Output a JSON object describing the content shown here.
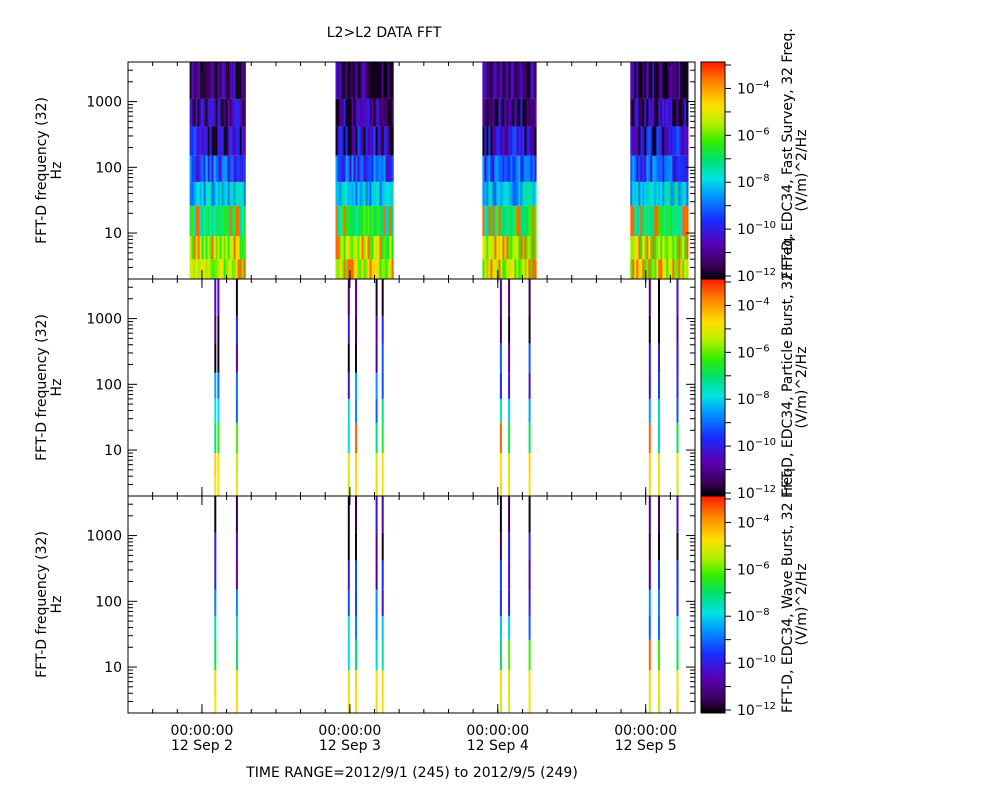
{
  "title": "L2>L2 DATA  FFT",
  "time_range_label": "TIME RANGE=2012/9/1 (245) to 2012/9/5 (249)",
  "chart_data": [
    {
      "type": "heatmap",
      "title": "L2>L2 DATA  FFT",
      "ylabel": "FFT-D frequency (32)",
      "yunit": "Hz",
      "yscale": "log",
      "ylim": [
        2,
        4000
      ],
      "yticks": [
        {
          "value": 10,
          "label": "10"
        },
        {
          "value": 100,
          "label": "100"
        },
        {
          "value": 1000,
          "label": "1000"
        }
      ],
      "xlim": [
        "2012-09-01 12:00",
        "2012-09-05 08:00"
      ],
      "xticks": [
        {
          "time": "2012-09-02 00:00",
          "label1": "00:00:00",
          "label2": "12 Sep  2"
        },
        {
          "time": "2012-09-03 00:00",
          "label1": "00:00:00",
          "label2": "12 Sep  3"
        },
        {
          "time": "2012-09-04 00:00",
          "label1": "00:00:00",
          "label2": "12 Sep  4"
        },
        {
          "time": "2012-09-05 00:00",
          "label1": "00:00:00",
          "label2": "12 Sep  5"
        }
      ],
      "xlabel": "TIME RANGE=2012/9/1 (245) to 2012/9/5 (249)",
      "colorbar": {
        "label1": "FFT-D, EDC34, Fast Survey, 32 Freq.",
        "label2": "(V/m)^2/Hz",
        "scale": "log",
        "range": [
          1e-12,
          0.001
        ],
        "ticks": [
          {
            "exp": -12
          },
          {
            "exp": -10
          },
          {
            "exp": -8
          },
          {
            "exp": -6
          },
          {
            "exp": -4
          }
        ]
      },
      "data_intervals": [
        {
          "start": "2012-09-01 22:00",
          "end": "2012-09-02 06:50"
        },
        {
          "start": "2012-09-02 21:40",
          "end": "2012-09-03 06:50"
        },
        {
          "start": "2012-09-03 21:30",
          "end": "2012-09-04 06:10"
        },
        {
          "start": "2012-09-04 21:30",
          "end": "2012-09-05 06:40"
        }
      ]
    },
    {
      "type": "heatmap",
      "ylabel": "FFT-D frequency (32)",
      "yunit": "Hz",
      "yscale": "log",
      "ylim": [
        2,
        4000
      ],
      "yticks": [
        {
          "value": 10,
          "label": "10"
        },
        {
          "value": 100,
          "label": "100"
        },
        {
          "value": 1000,
          "label": "1000"
        }
      ],
      "colorbar": {
        "label1": "FFT-D, EDC34, Particle Burst, 32 Freq.",
        "label2": "(V/m)^2/Hz",
        "scale": "log",
        "range": [
          1e-12,
          0.001
        ],
        "ticks": [
          {
            "exp": -12
          },
          {
            "exp": -10
          },
          {
            "exp": -8
          },
          {
            "exp": -6
          },
          {
            "exp": -4
          }
        ]
      },
      "data_times": [
        "2012-09-02 02:10",
        "2012-09-02 02:40",
        "2012-09-02 05:40",
        "2012-09-02 23:50",
        "2012-09-03 01:00",
        "2012-09-03 04:20",
        "2012-09-03 05:20",
        "2012-09-04 00:30",
        "2012-09-04 01:50",
        "2012-09-04 05:10",
        "2012-09-05 00:40",
        "2012-09-05 02:10",
        "2012-09-05 05:10"
      ]
    },
    {
      "type": "heatmap",
      "ylabel": "FFT-D frequency (32)",
      "yunit": "Hz",
      "yscale": "log",
      "ylim": [
        2,
        4000
      ],
      "yticks": [
        {
          "value": 10,
          "label": "10"
        },
        {
          "value": 100,
          "label": "100"
        },
        {
          "value": 1000,
          "label": "1000"
        }
      ],
      "colorbar": {
        "label1": "FFT-D, EDC34, Wave Burst, 32 Freq.",
        "label2": "(V/m)^2/Hz",
        "scale": "log",
        "range": [
          1e-12,
          0.001
        ],
        "ticks": [
          {
            "exp": -12
          },
          {
            "exp": -10
          },
          {
            "exp": -8
          },
          {
            "exp": -6
          },
          {
            "exp": -4
          }
        ]
      },
      "data_times": [
        "2012-09-02 02:10",
        "2012-09-02 05:40",
        "2012-09-02 23:50",
        "2012-09-03 01:00",
        "2012-09-03 04:20",
        "2012-09-03 05:20",
        "2012-09-04 00:30",
        "2012-09-04 01:50",
        "2012-09-04 05:10",
        "2012-09-05 00:40",
        "2012-09-05 02:10",
        "2012-09-05 05:10"
      ]
    }
  ]
}
